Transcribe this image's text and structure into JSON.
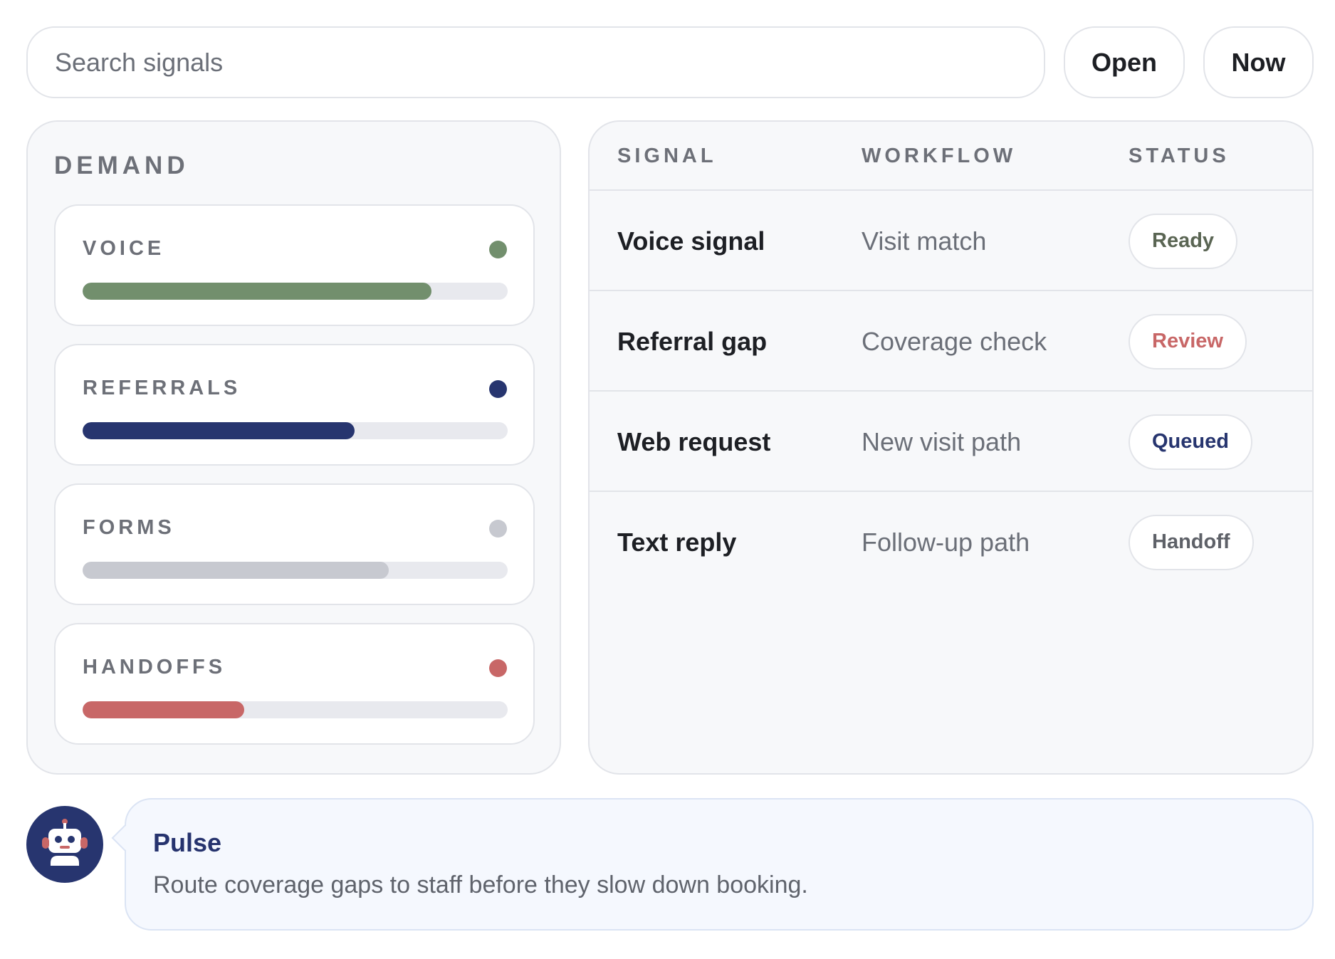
{
  "search": {
    "placeholder": "Search signals",
    "value": ""
  },
  "actions": {
    "open_label": "Open",
    "now_label": "Now"
  },
  "demand": {
    "title": "DEMAND",
    "metrics": [
      {
        "label": "VOICE",
        "level": 0.82,
        "color": "#728f6d"
      },
      {
        "label": "REFERRALS",
        "level": 0.64,
        "color": "#27356f"
      },
      {
        "label": "FORMS",
        "level": 0.72,
        "color": "#c7c9d0"
      },
      {
        "label": "HANDOFFS",
        "level": 0.38,
        "color": "#c86767"
      }
    ]
  },
  "table": {
    "headers": {
      "signal": "SIGNAL",
      "workflow": "WORKFLOW",
      "status": "STATUS"
    },
    "rows": [
      {
        "signal": "Voice signal",
        "workflow": "Visit match",
        "status": "Ready",
        "status_color": "#5a6553"
      },
      {
        "signal": "Referral gap",
        "workflow": "Coverage check",
        "status": "Review",
        "status_color": "#c86767"
      },
      {
        "signal": "Web request",
        "workflow": "New visit path",
        "status": "Queued",
        "status_color": "#27356f"
      },
      {
        "signal": "Text reply",
        "workflow": "Follow-up path",
        "status": "Handoff",
        "status_color": "#5e6168"
      }
    ]
  },
  "assistant": {
    "avatar_icon": "robot-icon",
    "name": "Pulse",
    "message": "Route coverage gaps to staff before they slow down booking."
  }
}
